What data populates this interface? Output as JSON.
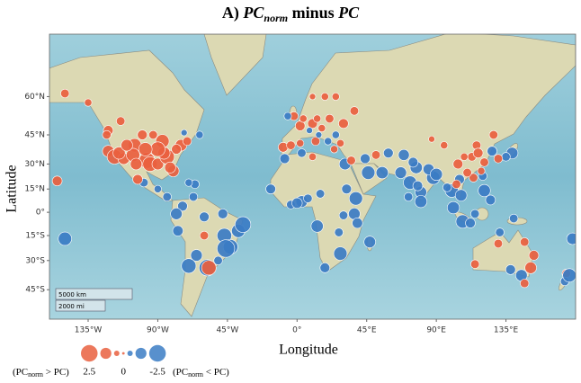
{
  "chart_data": {
    "type": "scatter",
    "title": {
      "pre": "A) ",
      "em": "PC",
      "sub": "norm",
      "mid": " minus ",
      "em2": "PC"
    },
    "x_label": "Longitude",
    "y_label": "Latitude",
    "xlim": [
      -160,
      180
    ],
    "ylim": [
      -57,
      75
    ],
    "projection": "mercator",
    "xticks": [
      {
        "value": -135,
        "label": "135°W"
      },
      {
        "value": -90,
        "label": "90°W"
      },
      {
        "value": -45,
        "label": "45°W"
      },
      {
        "value": 0,
        "label": "0°"
      },
      {
        "value": 45,
        "label": "45°E"
      },
      {
        "value": 90,
        "label": "90°E"
      },
      {
        "value": 135,
        "label": "135°E"
      }
    ],
    "yticks": [
      {
        "value": 60,
        "label": "60°N"
      },
      {
        "value": 45,
        "label": "45°N"
      },
      {
        "value": 30,
        "label": "30°N"
      },
      {
        "value": 15,
        "label": "15°N"
      },
      {
        "value": 0,
        "label": "0°"
      },
      {
        "value": -15,
        "label": "15°S"
      },
      {
        "value": -30,
        "label": "30°S"
      },
      {
        "value": -45,
        "label": "45°S"
      }
    ],
    "colors": {
      "positive": "#e9603f",
      "negative": "#3b7cc4"
    },
    "x": [
      -122,
      -122,
      -118,
      -112,
      -105,
      -97,
      -95,
      -90,
      -87,
      -84,
      -80,
      -75,
      -71,
      -100,
      -93,
      -106,
      -115,
      -82,
      -86,
      -78,
      -123,
      -110,
      -90,
      -98,
      -104,
      -114,
      -73,
      -63,
      -150,
      -135,
      -99,
      -90,
      -84,
      -103,
      -66,
      -70,
      -74,
      -78,
      -77,
      -47,
      -43,
      -46,
      -38,
      -35,
      -58,
      -65,
      -70,
      -60,
      -57,
      -51,
      -67,
      -48,
      -60,
      -150,
      -155,
      -9,
      -4,
      2,
      2,
      -2,
      4,
      10,
      13,
      12,
      16,
      21,
      24,
      18,
      10,
      25,
      30,
      37,
      28,
      -6,
      8,
      14,
      25,
      20,
      -17,
      -4,
      3,
      7,
      0,
      15,
      32,
      38,
      37,
      39,
      28,
      18,
      30,
      47,
      31,
      35,
      44,
      51,
      46,
      55,
      59,
      67,
      69,
      13,
      27,
      -8,
      3,
      10,
      73,
      77,
      80,
      88,
      75,
      85,
      90,
      72,
      80,
      78,
      100,
      106,
      105,
      101,
      107,
      112,
      121,
      125,
      120,
      114,
      116,
      121,
      104,
      113,
      108,
      117,
      110,
      119,
      126,
      127,
      139,
      135,
      130,
      95,
      87,
      97,
      103,
      115,
      140,
      151,
      145,
      153,
      115,
      131,
      147,
      138,
      130,
      147,
      174,
      173,
      178,
      176
    ],
    "y": [
      47,
      37,
      34,
      33,
      40,
      32,
      30,
      30,
      42,
      34,
      26,
      40,
      42,
      45,
      45,
      35,
      36,
      28,
      36,
      38,
      45,
      40,
      38,
      38,
      30,
      51,
      46,
      45,
      61,
      58,
      19,
      15,
      10,
      21,
      18,
      19,
      4,
      -1,
      -12,
      -15,
      -22,
      -23,
      -12,
      -8,
      -34,
      -27,
      -33,
      -3,
      -34,
      -30,
      10,
      -1,
      -15,
      -17,
      20,
      39,
      40,
      41,
      49,
      53,
      52,
      50,
      52,
      42,
      48,
      52,
      38,
      60,
      60,
      60,
      50,
      55,
      41,
      53,
      47,
      45,
      45,
      42,
      15,
      5,
      7,
      9,
      6,
      12,
      15,
      9,
      -1,
      -7,
      -26,
      -34,
      -2,
      -19,
      30,
      32,
      33,
      35,
      25,
      25,
      36,
      25,
      35,
      -9,
      -13,
      33,
      36,
      34,
      19,
      28,
      13,
      22,
      31,
      27,
      24,
      10,
      7,
      17,
      14,
      11,
      21,
      3,
      -6,
      -7,
      14,
      8,
      23,
      22,
      40,
      31,
      30,
      34,
      34,
      36,
      25,
      26,
      37,
      45,
      36,
      34,
      33,
      40,
      43,
      16,
      18,
      -1,
      -4,
      -34,
      -38,
      -27,
      -32,
      -13,
      -19,
      -35,
      -20,
      -42,
      -37,
      -41,
      -17,
      -38
    ],
    "values": [
      1.2,
      1.5,
      2.0,
      1.5,
      1.8,
      2.2,
      2.0,
      1.5,
      1.8,
      2.0,
      1.5,
      1.5,
      1.0,
      1.2,
      1.0,
      1.8,
      1.6,
      1.4,
      1.6,
      1.2,
      1.0,
      1.5,
      2.0,
      1.8,
      1.5,
      1.0,
      -0.6,
      -0.8,
      1.0,
      0.8,
      -1.0,
      -0.8,
      -1.0,
      1.2,
      -1.0,
      -0.8,
      -1.2,
      -1.5,
      -1.3,
      -2.0,
      -2.0,
      -2.5,
      -1.8,
      -2.2,
      -2.3,
      -1.5,
      -2.0,
      -1.2,
      2.0,
      -1.0,
      -1.0,
      -1.2,
      1.0,
      -1.8,
      1.2,
      1.2,
      1.0,
      0.8,
      1.2,
      1.0,
      0.8,
      1.2,
      0.8,
      1.0,
      0.8,
      1.0,
      0.8,
      0.8,
      0.6,
      0.8,
      1.2,
      1.0,
      0.8,
      -0.8,
      -0.6,
      -0.6,
      -0.8,
      -0.8,
      -1.2,
      -1.0,
      -1.5,
      -1.0,
      -1.3,
      -1.0,
      -1.2,
      -1.8,
      -1.5,
      -1.3,
      -1.8,
      -1.2,
      -1.0,
      -1.5,
      -1.5,
      1.0,
      -1.2,
      1.0,
      -1.8,
      -1.6,
      -1.2,
      -1.5,
      -1.4,
      -1.6,
      -1.0,
      -1.2,
      -1.0,
      0.8,
      -1.8,
      -1.6,
      -1.5,
      -1.8,
      -1.2,
      -1.4,
      -1.6,
      -1.0,
      -1.6,
      -1.2,
      -1.8,
      -1.5,
      -1.2,
      -1.6,
      -1.8,
      -1.2,
      -1.6,
      -1.2,
      -1.0,
      1.0,
      1.0,
      1.0,
      1.2,
      1.0,
      0.8,
      1.2,
      1.0,
      0.8,
      -1.2,
      1.0,
      -1.5,
      -1.0,
      1.0,
      0.8,
      0.6,
      -1.0,
      1.0,
      -1.0,
      -1.0,
      1.5,
      -1.5,
      1.2,
      1.0,
      -1.0,
      1.0,
      -1.2,
      1.0,
      1.0,
      1.0,
      -1.0,
      -1.5,
      -1.8
    ],
    "legend": {
      "values": [
        2.5,
        1.5,
        0.5,
        0,
        -0.5,
        -1.5,
        -2.5
      ],
      "left_note": {
        "pre": "(PC",
        "sub": "norm",
        "post": " > PC)"
      },
      "right_note": {
        "pre": "(PC",
        "sub": "norm",
        "post": " < PC)"
      }
    },
    "scale_bar": [
      "5000 km",
      "2000 mi"
    ]
  }
}
